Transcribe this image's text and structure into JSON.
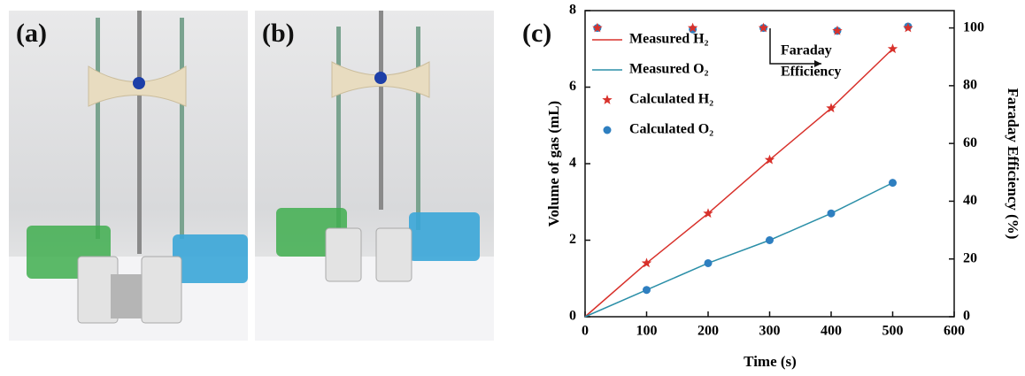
{
  "panel_labels": [
    "(a)",
    "(b)"
  ],
  "chart_data": {
    "type": "line",
    "panel_label": "(c)",
    "x_label": "Time (s)",
    "y_label": "Volume of gas (mL)",
    "y2_label": "Faraday Efficiency (%)",
    "annotation": [
      "Faraday",
      "Efficiency"
    ],
    "xlim": [
      0,
      600
    ],
    "xticks": [
      0,
      100,
      200,
      300,
      400,
      500,
      600
    ],
    "ylim": [
      0,
      8
    ],
    "yticks": [
      0,
      2,
      4,
      6,
      8
    ],
    "y2lim": [
      0,
      106
    ],
    "y2ticks": [
      0,
      20,
      40,
      60,
      80,
      100
    ],
    "legend": "upper left",
    "series": [
      {
        "name": "Measured H₂",
        "style": "line",
        "color": "#d8312b",
        "x": [
          0,
          100,
          200,
          300,
          400,
          500
        ],
        "values": [
          0,
          1.4,
          2.7,
          4.1,
          5.45,
          7.0
        ]
      },
      {
        "name": "Measured O₂",
        "style": "line",
        "color": "#2b8fa8",
        "x": [
          0,
          100,
          200,
          300,
          400,
          500
        ],
        "values": [
          0,
          0.7,
          1.4,
          2.0,
          2.7,
          3.5
        ]
      },
      {
        "name": "Calculated H₂",
        "style": "star",
        "color": "#d8312b",
        "x": [
          100,
          200,
          300,
          400,
          500
        ],
        "values": [
          1.4,
          2.7,
          4.1,
          5.45,
          7.0
        ]
      },
      {
        "name": "Calculated O₂",
        "style": "circle",
        "color": "#2e7fc0",
        "x": [
          100,
          200,
          300,
          400,
          500
        ],
        "values": [
          0.7,
          1.4,
          2.0,
          2.7,
          3.5
        ]
      },
      {
        "style": "circle",
        "color": "#2e7fc0",
        "axis": "y2",
        "x": [
          20,
          175,
          290,
          410,
          525
        ],
        "values": [
          100,
          99.5,
          100,
          99,
          100.5
        ]
      },
      {
        "style": "star",
        "color": "#d8312b",
        "axis": "y2",
        "x": [
          20,
          175,
          290,
          410,
          525
        ],
        "values": [
          100,
          100,
          100,
          99,
          100
        ]
      }
    ]
  }
}
